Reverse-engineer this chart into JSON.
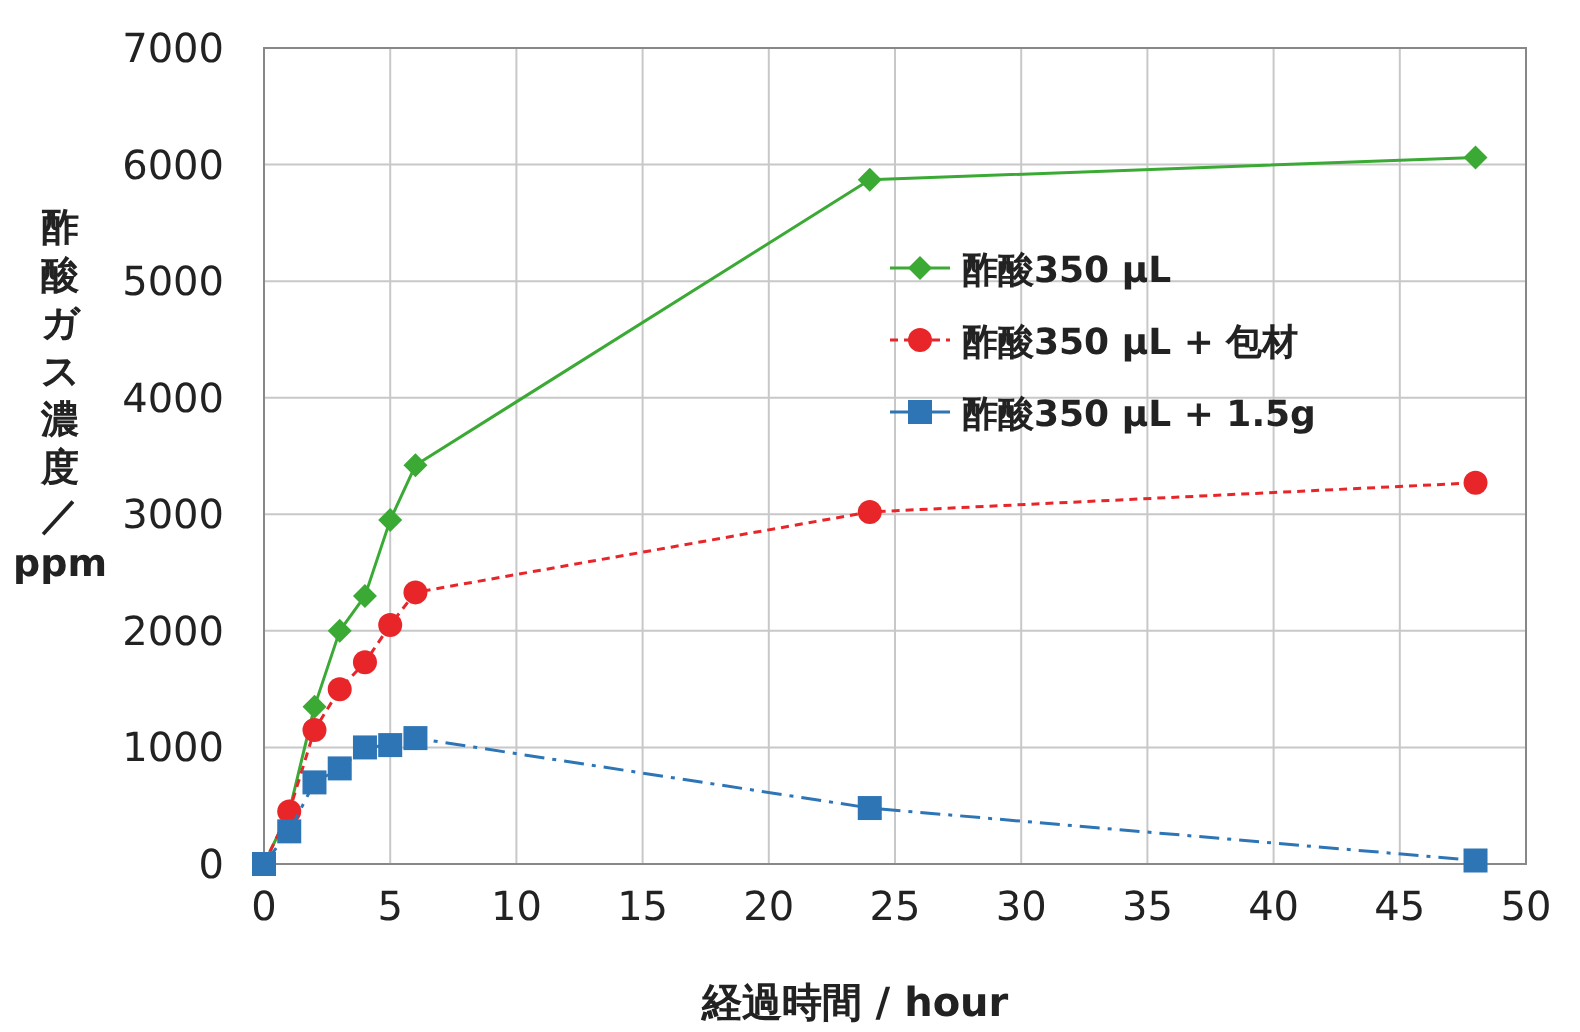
{
  "chart_data": {
    "type": "line",
    "xlabel": "経過時間 / hour",
    "ylabel": "酢酸ガス濃度／ppm",
    "xlim": [
      0,
      50
    ],
    "xticks": [
      0,
      5,
      10,
      15,
      20,
      25,
      30,
      35,
      40,
      45,
      50
    ],
    "ylim": [
      0,
      7000
    ],
    "yticks": [
      0,
      1000,
      2000,
      3000,
      4000,
      5000,
      6000,
      7000
    ],
    "grid": true,
    "legend": "right",
    "series": [
      {
        "name": "酢酸350 µL",
        "color": "#3aaa35",
        "marker": "diamond",
        "line_style": "solid",
        "x": [
          0,
          1,
          2,
          3,
          4,
          5,
          6,
          24,
          48
        ],
        "values": [
          0,
          450,
          1350,
          2000,
          2300,
          2950,
          3420,
          5870,
          6060
        ]
      },
      {
        "name": "酢酸350 µL + 包材",
        "color": "#e8262a",
        "marker": "circle",
        "line_style": "dashed",
        "x": [
          0,
          1,
          2,
          3,
          4,
          5,
          6,
          24,
          48
        ],
        "values": [
          0,
          450,
          1150,
          1500,
          1730,
          2050,
          2330,
          3020,
          3270
        ]
      },
      {
        "name": "酢酸350 µL + 1.5g",
        "color": "#2e75b6",
        "marker": "square",
        "line_style": "dashdot",
        "x": [
          0,
          1,
          2,
          3,
          4,
          5,
          6,
          24,
          48
        ],
        "values": [
          0,
          280,
          700,
          820,
          1000,
          1020,
          1080,
          480,
          30
        ]
      }
    ]
  }
}
